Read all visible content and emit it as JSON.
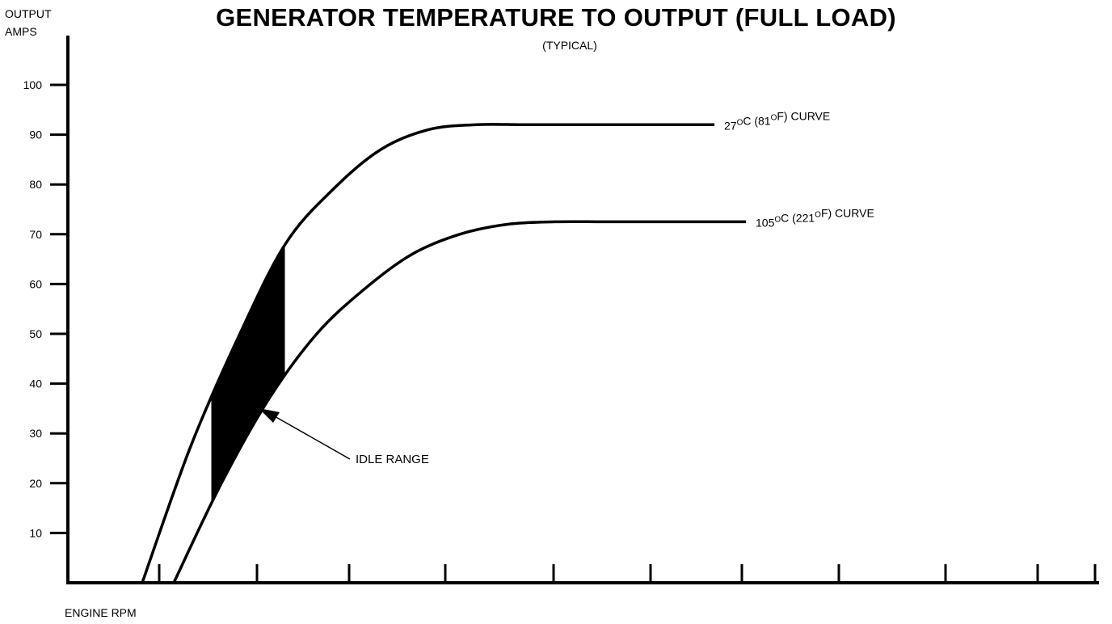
{
  "chart_data": {
    "type": "line",
    "title": "GENERATOR TEMPERATURE TO OUTPUT (FULL LOAD)",
    "subtitle": "(TYPICAL)",
    "ylabel_line1": "OUTPUT",
    "ylabel_line2": "AMPS",
    "xlabel": "ENGINE RPM",
    "ylim": [
      0,
      105
    ],
    "y_ticks": [
      10,
      20,
      30,
      40,
      50,
      60,
      70,
      80,
      90,
      100
    ],
    "x_tick_count": 11,
    "x_tick_labels": [],
    "grid": false,
    "series": [
      {
        "name_parts": [
          "27",
          "O",
          "C (81",
          "O",
          "F) CURVE"
        ],
        "x": [
          0,
          0.5,
          1,
          1.5,
          2,
          2.5,
          3,
          3.5,
          4,
          4.5,
          5,
          5.5,
          6
        ],
        "values": [
          0,
          27,
          49,
          68,
          79,
          87,
          91,
          92,
          92,
          92,
          92,
          92,
          92
        ]
      },
      {
        "name_parts": [
          "105",
          "O",
          "C (221",
          "O",
          "F) CURVE"
        ],
        "x": [
          0,
          0.5,
          1,
          1.5,
          2,
          2.5,
          3,
          3.5,
          4,
          4.5,
          5,
          5.5,
          6
        ],
        "values": [
          0,
          20,
          37,
          50,
          59,
          66,
          70,
          72,
          72.5,
          72.5,
          72.5,
          72.5,
          72.5
        ]
      }
    ],
    "annotation": {
      "label": "IDLE RANGE"
    },
    "colors": {
      "line": "#000000",
      "background": "#ffffff"
    }
  }
}
